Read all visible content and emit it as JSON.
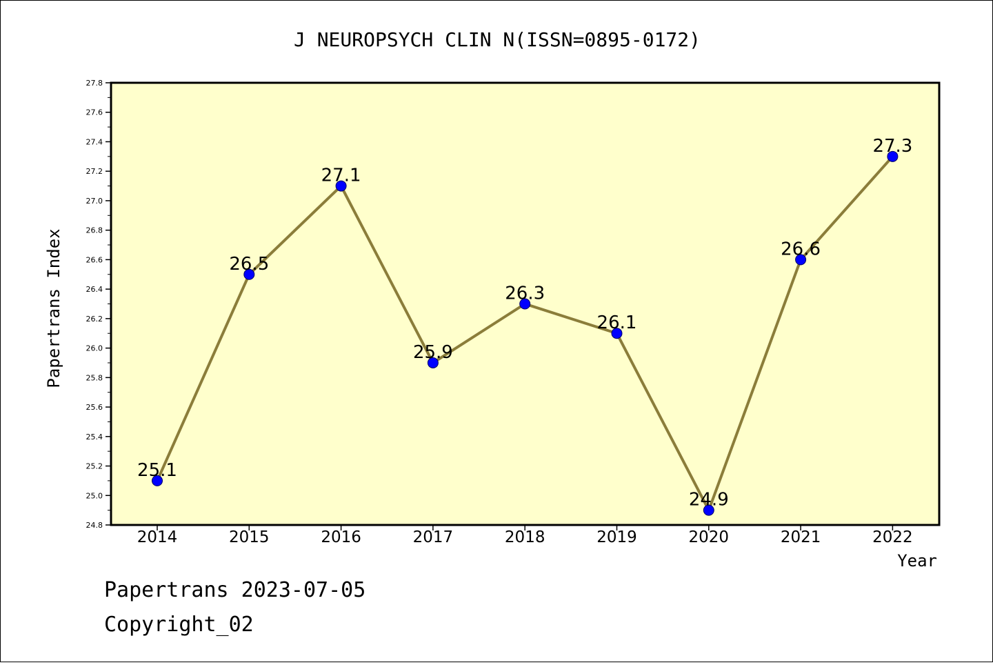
{
  "chart_data": {
    "type": "line",
    "title": "J NEUROPSYCH CLIN N(ISSN=0895-0172)",
    "xlabel": "Year",
    "ylabel": "Papertrans Index",
    "x": [
      "2014",
      "2015",
      "2016",
      "2017",
      "2018",
      "2019",
      "2020",
      "2021",
      "2022"
    ],
    "series": [
      {
        "values": [
          25.1,
          26.5,
          27.1,
          25.9,
          26.3,
          26.1,
          24.9,
          26.6,
          27.3
        ],
        "labels": [
          "25.1",
          "26.5",
          "27.1",
          "25.9",
          "26.3",
          "26.1",
          "24.9",
          "26.6",
          "27.3"
        ]
      }
    ],
    "ylim": [
      24.8,
      27.8
    ],
    "yticks": [
      "24.8",
      "25.0",
      "25.2",
      "25.4",
      "25.6",
      "25.8",
      "26.0",
      "26.2",
      "26.4",
      "26.6",
      "26.8",
      "27.0",
      "27.2",
      "27.4",
      "27.6",
      "27.8"
    ],
    "grid": false,
    "colors": {
      "plot_background": "#ffffcc",
      "line": "#8b7d3a",
      "marker": "#0000ff"
    }
  },
  "footer": {
    "line1": "Papertrans 2023-07-05",
    "line2": "Copyright_02"
  }
}
